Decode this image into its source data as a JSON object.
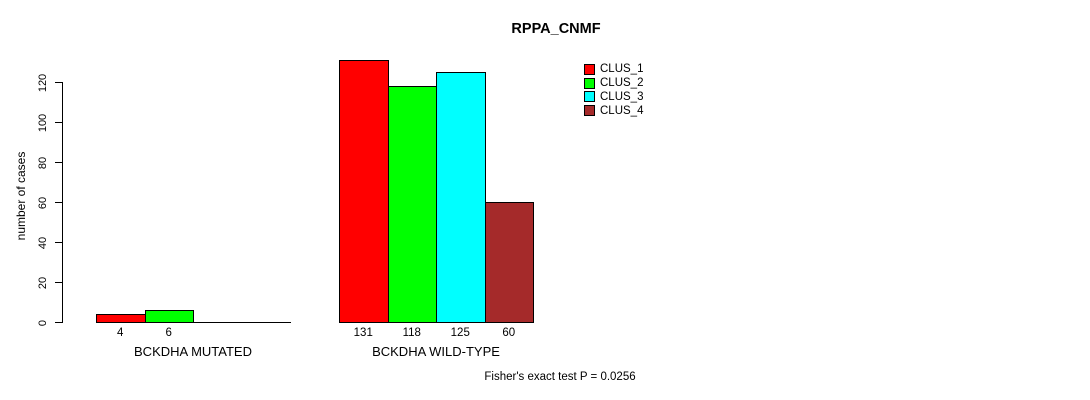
{
  "chart_data": {
    "type": "bar",
    "title": "RPPA_CNMF",
    "ylabel": "number of cases",
    "xlabel": "",
    "yticks": [
      0,
      20,
      40,
      60,
      80,
      100,
      120
    ],
    "ylim": [
      0,
      131
    ],
    "grid": false,
    "legend_position": "top-right",
    "categories": [
      "BCKDHA MUTATED",
      "BCKDHA WILD-TYPE"
    ],
    "series": [
      {
        "name": "CLUS_1",
        "color": "#FF0000"
      },
      {
        "name": "CLUS_2",
        "color": "#00FF00"
      },
      {
        "name": "CLUS_3",
        "color": "#00FFFF"
      },
      {
        "name": "CLUS_4",
        "color": "#A52A2A"
      }
    ],
    "groups": [
      {
        "label": "BCKDHA MUTATED",
        "values": [
          4,
          6,
          0,
          0
        ]
      },
      {
        "label": "BCKDHA WILD-TYPE",
        "values": [
          131,
          118,
          125,
          60
        ]
      }
    ],
    "bar_value_labels": [
      [
        4,
        6
      ],
      [
        131,
        118,
        125,
        60
      ]
    ],
    "annotation": "Fisher's exact test P = 0.0256"
  }
}
